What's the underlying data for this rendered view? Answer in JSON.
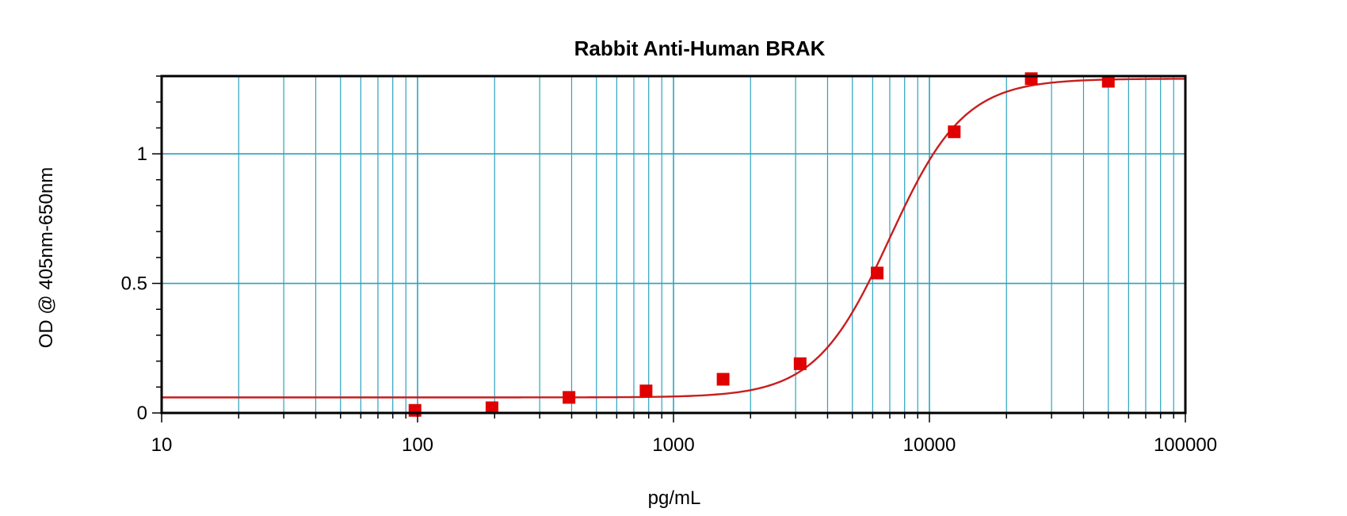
{
  "chart_data": {
    "type": "scatter",
    "title": "Rabbit Anti-Human BRAK",
    "xlabel": "pg/mL",
    "ylabel": "OD @ 405nm-650nm",
    "x_scale": "log",
    "xlim": [
      10,
      100000
    ],
    "ylim": [
      0,
      1.3
    ],
    "x_ticks": [
      10,
      100,
      1000,
      10000,
      100000
    ],
    "x_tick_labels": [
      "10",
      "100",
      "1000",
      "10000",
      "100000"
    ],
    "y_ticks": [
      0,
      0.5,
      1
    ],
    "y_tick_labels": [
      "0",
      "0.5",
      "1"
    ],
    "grid": true,
    "series": [
      {
        "points": [
          {
            "x": 97.7,
            "y": 0.01
          },
          {
            "x": 195.3,
            "y": 0.02
          },
          {
            "x": 390.6,
            "y": 0.06
          },
          {
            "x": 781.3,
            "y": 0.085
          },
          {
            "x": 1562.5,
            "y": 0.13
          },
          {
            "x": 3125,
            "y": 0.19
          },
          {
            "x": 6250,
            "y": 0.54
          },
          {
            "x": 12500,
            "y": 1.085
          },
          {
            "x": 25000,
            "y": 1.29
          },
          {
            "x": 50000,
            "y": 1.28
          }
        ]
      }
    ],
    "fit_curve": {
      "bottom": 0.06,
      "top": 1.29,
      "ec50": 7000,
      "hill": 3.0
    },
    "colors": {
      "grid": "#2aa3bf",
      "marker": "#e00000",
      "curve": "#c81e1e",
      "axis": "#000000"
    }
  }
}
